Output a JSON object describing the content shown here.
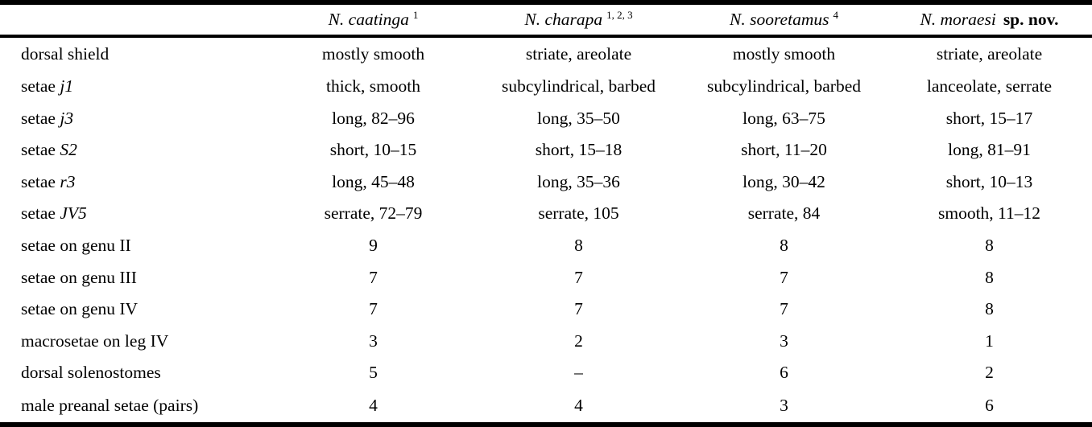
{
  "colors": {
    "background": "#ffffff",
    "rule": "#000000",
    "text": "#000000"
  },
  "table": {
    "header": {
      "corner": "",
      "species": [
        {
          "name": "N. caatinga",
          "sup": "1",
          "suffix": ""
        },
        {
          "name": "N. charapa",
          "sup": "1, 2, 3",
          "suffix": ""
        },
        {
          "name": "N. sooretamus",
          "sup": "4",
          "suffix": ""
        },
        {
          "name": "N. moraesi",
          "sup": "",
          "suffix": "sp. nov."
        }
      ]
    },
    "rows": [
      {
        "label": "dorsal shield",
        "label_italic": "",
        "values": [
          "mostly smooth",
          "striate, areolate",
          "mostly smooth",
          "striate, areolate"
        ]
      },
      {
        "label": "setae ",
        "label_italic": "j1",
        "values": [
          "thick, smooth",
          "subcylindrical, barbed",
          "subcylindrical, barbed",
          "lanceolate, serrate"
        ]
      },
      {
        "label": "setae ",
        "label_italic": "j3",
        "values": [
          "long, 82–96",
          "long, 35–50",
          "long, 63–75",
          "short, 15–17"
        ]
      },
      {
        "label": "setae ",
        "label_italic": "S2",
        "values": [
          "short, 10–15",
          "short, 15–18",
          "short, 11–20",
          "long, 81–91"
        ]
      },
      {
        "label": "setae ",
        "label_italic": "r3",
        "values": [
          "long, 45–48",
          "long, 35–36",
          "long, 30–42",
          "short, 10–13"
        ]
      },
      {
        "label": "setae ",
        "label_italic": "JV5",
        "values": [
          "serrate, 72–79",
          "serrate, 105",
          "serrate, 84",
          "smooth, 11–12"
        ]
      },
      {
        "label": "setae on genu II",
        "label_italic": "",
        "values": [
          "9",
          "8",
          "8",
          "8"
        ]
      },
      {
        "label": "setae on genu III",
        "label_italic": "",
        "values": [
          "7",
          "7",
          "7",
          "8"
        ]
      },
      {
        "label": "setae on genu IV",
        "label_italic": "",
        "values": [
          "7",
          "7",
          "7",
          "8"
        ]
      },
      {
        "label": "macrosetae on leg IV",
        "label_italic": "",
        "values": [
          "3",
          "2",
          "3",
          "1"
        ]
      },
      {
        "label": "dorsal solenostomes",
        "label_italic": "",
        "values": [
          "5",
          "–",
          "6",
          "2"
        ]
      },
      {
        "label": "male preanal setae (pairs)",
        "label_italic": "",
        "values": [
          "4",
          "4",
          "3",
          "6"
        ]
      }
    ]
  }
}
